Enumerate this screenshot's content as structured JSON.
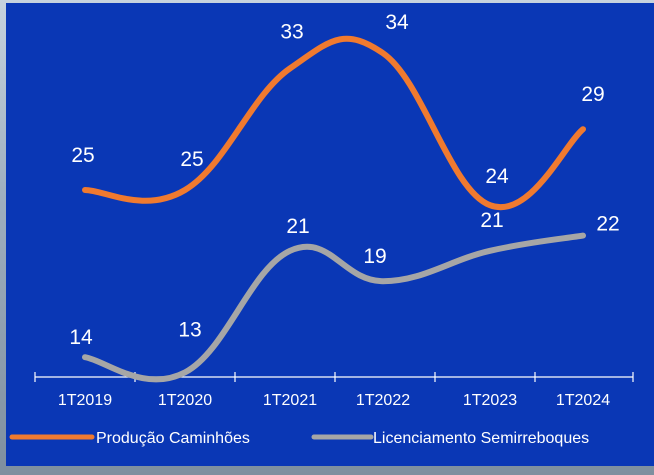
{
  "chart_data": {
    "type": "line",
    "categories": [
      "1T2019",
      "1T2020",
      "1T2021",
      "1T2022",
      "1T2023",
      "1T2024"
    ],
    "series": [
      {
        "name": "Produção Caminhões",
        "values": [
          25,
          25,
          33,
          34,
          24,
          29
        ],
        "color": "#f07a2f"
      },
      {
        "name": "Licenciamento Semirreboques",
        "values": [
          14,
          13,
          21,
          19,
          21,
          22
        ],
        "color": "#a6a6a6"
      }
    ],
    "ylim": [
      0,
      40
    ],
    "grid": false,
    "legend": "bottom",
    "colors": {
      "background": "#0a37b5",
      "text": "#ffffff",
      "axis": "#ffffff"
    }
  }
}
